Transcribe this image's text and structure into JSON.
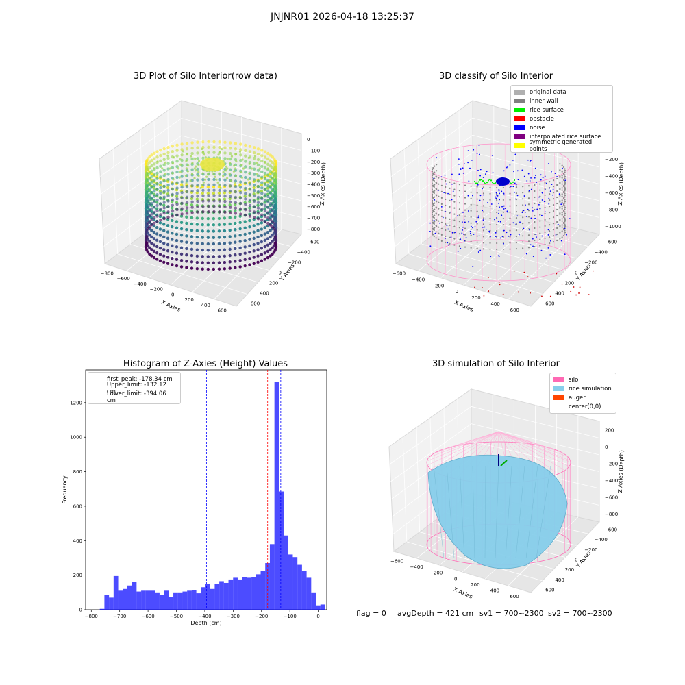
{
  "suptitle": "JNJNR01 2026-04-18 13:25:37",
  "plot1": {
    "title": "3D Plot of Silo Interior(row data)",
    "xlabel": "X Axies",
    "ylabel": "Y Axies",
    "zlabel": "Z Axies (Depth)",
    "xticks": [
      "−800",
      "−600",
      "−400",
      "−200",
      "0",
      "200",
      "400",
      "600"
    ],
    "yticks": [
      "600",
      "400",
      "200",
      "0",
      "−200",
      "−400",
      "−600"
    ],
    "zticks": [
      "0",
      "−100",
      "−200",
      "−300",
      "−400",
      "−500",
      "−600",
      "−700",
      "−800"
    ]
  },
  "plot2": {
    "title": "3D classify of Silo Interior",
    "xlabel": "X Axies",
    "ylabel": "Y Axies",
    "zlabel": "Z Axies (Depth)",
    "xticks": [
      "−600",
      "−400",
      "−200",
      "0",
      "200",
      "400",
      "600"
    ],
    "yticks": [
      "600",
      "400",
      "200",
      "0",
      "−200",
      "−400",
      "−600"
    ],
    "zticks": [
      "0",
      "−200",
      "−400",
      "−600",
      "−800",
      "−1000"
    ],
    "legend": [
      {
        "label": "original data",
        "color": "#b0b0b0"
      },
      {
        "label": "inner wall",
        "color": "#808080"
      },
      {
        "label": "rice surface",
        "color": "#00ee00"
      },
      {
        "label": "obstacle",
        "color": "#ff0000"
      },
      {
        "label": "noise",
        "color": "#0000ff"
      },
      {
        "label": "interpolated rice surface",
        "color": "#800080"
      },
      {
        "label": "symmetric generated points",
        "color": "#ffff00"
      }
    ]
  },
  "plot4": {
    "title": "3D simulation of Silo Interior",
    "xlabel": "X Axies",
    "ylabel": "Y Axies",
    "zlabel": "Z Axies (Depth)",
    "xticks": [
      "−600",
      "−400",
      "−200",
      "0",
      "200",
      "400",
      "600"
    ],
    "yticks": [
      "600",
      "400",
      "200",
      "0",
      "−200",
      "−400",
      "−600"
    ],
    "zticks": [
      "200",
      "0",
      "−200",
      "−400",
      "−600",
      "−800"
    ],
    "legend": [
      {
        "label": "silo",
        "color": "#ff69b4"
      },
      {
        "label": "rice simulation",
        "color": "#87ceeb"
      },
      {
        "label": "auger",
        "color": "#ff4500"
      },
      {
        "label": "center(0,0)",
        "color": ""
      }
    ]
  },
  "chart_data": {
    "type": "bar",
    "title": "Histogram of Z-Axies (Height) Values",
    "xlabel": "Depth (cm)",
    "ylabel": "Frequency",
    "xlim": [
      -820,
      30
    ],
    "ylim": [
      0,
      1390
    ],
    "bar_color": "#0000ff",
    "xticks": [
      -800,
      -700,
      -600,
      -500,
      -400,
      -300,
      -200,
      -100,
      0
    ],
    "yticks": [
      0,
      200,
      400,
      600,
      800,
      1000,
      1200
    ],
    "bin_width": 16.2,
    "bin_start": -770,
    "values": [
      5,
      85,
      70,
      195,
      110,
      120,
      140,
      160,
      105,
      110,
      110,
      110,
      100,
      85,
      110,
      75,
      100,
      100,
      105,
      110,
      115,
      95,
      130,
      150,
      120,
      150,
      165,
      155,
      175,
      185,
      175,
      190,
      185,
      190,
      205,
      225,
      270,
      380,
      1320,
      685,
      430,
      320,
      305,
      260,
      225,
      185,
      100,
      25,
      30
    ],
    "lines": [
      {
        "label": "first_peak: -178.34 cm",
        "x": -178.34,
        "color": "#ff0000"
      },
      {
        "label": "Upper_limit: -132.12 cm",
        "x": -132.12,
        "color": "#0000ff"
      },
      {
        "label": "Lower_limit: -394.06 cm",
        "x": -394.06,
        "color": "#0000ff"
      }
    ]
  },
  "footer": {
    "flag": "flag = 0",
    "avg": "avgDepth = 421 cm",
    "sv1": "sv1 = 700~2300",
    "sv2": "sv2 = 700~2300"
  }
}
